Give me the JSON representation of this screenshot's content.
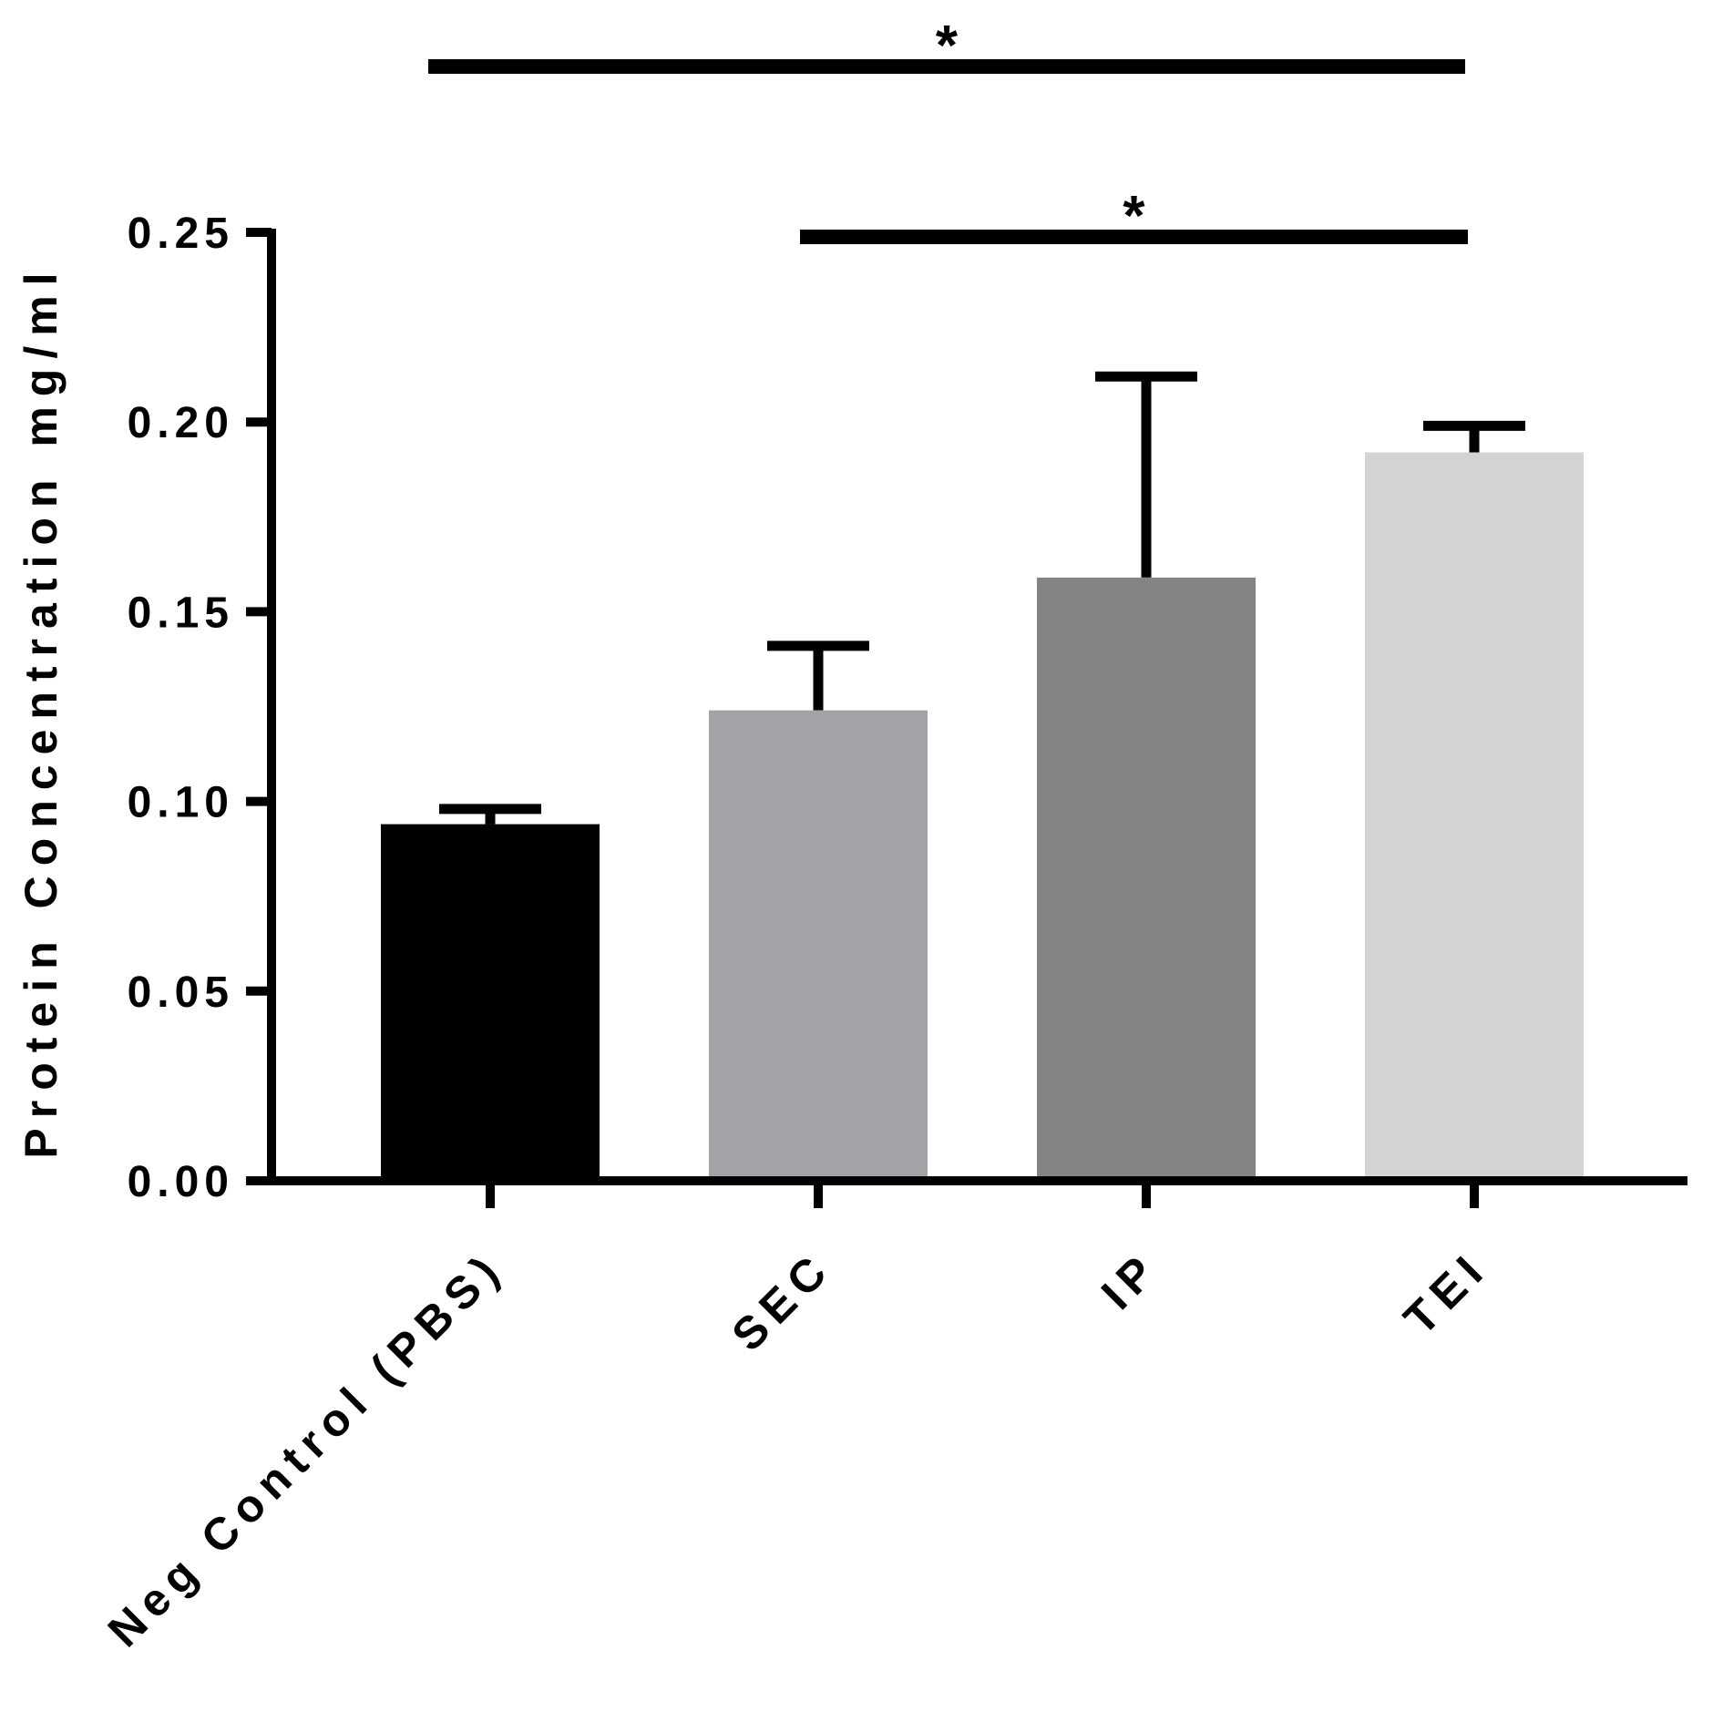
{
  "chart_data": {
    "type": "bar",
    "title": "",
    "xlabel": "",
    "ylabel": "Protein Concentration mg/ml",
    "ylim": [
      0,
      0.25
    ],
    "yticks": [
      0.0,
      0.05,
      0.1,
      0.15,
      0.2,
      0.25
    ],
    "ytick_labels": [
      "0.00",
      "0.05",
      "0.10",
      "0.15",
      "0.20",
      "0.25"
    ],
    "categories": [
      "Neg Control (PBS)",
      "SEC",
      "IP",
      "TEI"
    ],
    "values": [
      0.094,
      0.124,
      0.159,
      0.192
    ],
    "error_upper": [
      0.098,
      0.141,
      0.212,
      0.199
    ],
    "colors": [
      "#000000",
      "#a3a3a7",
      "#848484",
      "#d3d3d3"
    ],
    "grid": false,
    "legend": "none",
    "significance": [
      {
        "from": 0,
        "to": 3,
        "label": "*"
      },
      {
        "from": 1,
        "to": 3,
        "label": "*"
      }
    ]
  }
}
